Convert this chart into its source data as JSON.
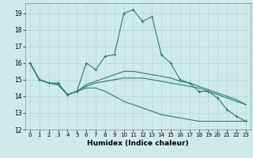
{
  "xlabel": "Humidex (Indice chaleur)",
  "bg_color": "#ceeaea",
  "line_color": "#2e7d6e",
  "grid_color": "#b8d4d4",
  "xlim": [
    -0.5,
    23.5
  ],
  "ylim": [
    12,
    19.6
  ],
  "yticks": [
    12,
    13,
    14,
    15,
    16,
    17,
    18,
    19
  ],
  "xticks": [
    0,
    1,
    2,
    3,
    4,
    5,
    6,
    7,
    8,
    9,
    10,
    11,
    12,
    13,
    14,
    15,
    16,
    17,
    18,
    19,
    20,
    21,
    22,
    23
  ],
  "series": [
    [
      16.0,
      15.0,
      14.8,
      14.8,
      14.1,
      14.3,
      16.0,
      15.6,
      16.4,
      16.5,
      19.0,
      19.2,
      18.5,
      18.8,
      16.5,
      16.0,
      15.0,
      14.8,
      14.3,
      14.3,
      13.9,
      13.2,
      12.8,
      12.5
    ],
    [
      16.0,
      15.0,
      14.8,
      14.7,
      14.1,
      14.3,
      14.7,
      14.9,
      15.1,
      15.3,
      15.5,
      15.5,
      15.4,
      15.3,
      15.2,
      15.1,
      14.9,
      14.8,
      14.6,
      14.4,
      14.2,
      14.0,
      13.8,
      13.5
    ],
    [
      16.0,
      15.0,
      14.8,
      14.7,
      14.1,
      14.3,
      14.6,
      14.8,
      14.9,
      15.0,
      15.1,
      15.1,
      15.1,
      15.0,
      14.9,
      14.8,
      14.7,
      14.6,
      14.5,
      14.3,
      14.1,
      13.9,
      13.7,
      13.5
    ],
    [
      16.0,
      15.0,
      14.8,
      14.7,
      14.1,
      14.3,
      14.5,
      14.5,
      14.3,
      14.0,
      13.7,
      13.5,
      13.3,
      13.1,
      12.9,
      12.8,
      12.7,
      12.6,
      12.5,
      12.5,
      12.5,
      12.5,
      12.5,
      12.5
    ]
  ]
}
